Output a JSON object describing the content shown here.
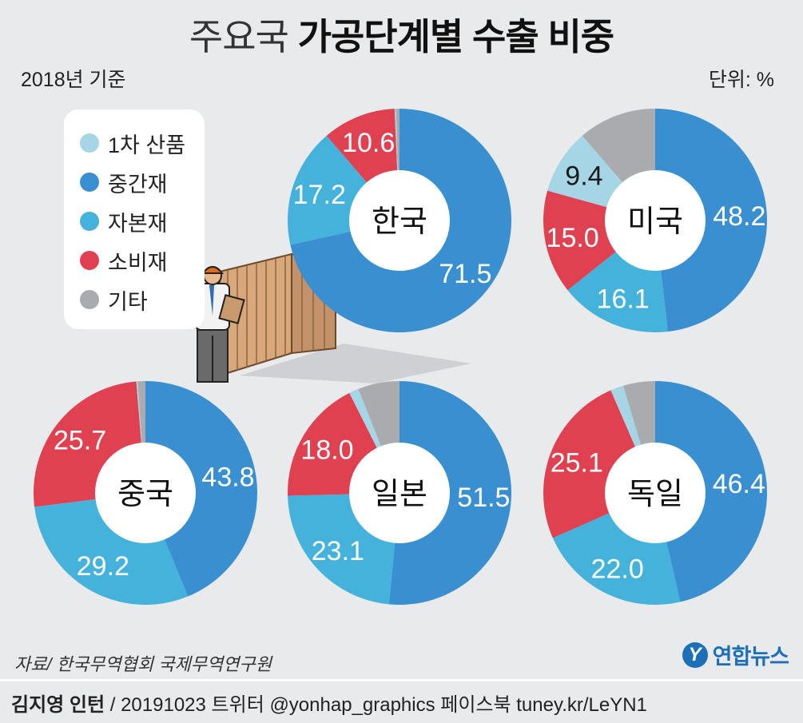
{
  "title_light": "주요국",
  "title_bold": "가공단계별 수출 비중",
  "basis": "2018년 기준",
  "unit": "단위: %",
  "legend": [
    {
      "label": "1차 산품",
      "color": "#a6d5e6"
    },
    {
      "label": "중간재",
      "color": "#3a8fd0"
    },
    {
      "label": "자본재",
      "color": "#45b2dc"
    },
    {
      "label": "소비재",
      "color": "#e04150"
    },
    {
      "label": "기타",
      "color": "#a9abae"
    }
  ],
  "source": "자료/ 한국무역협회 국제무역연구원",
  "credit_author": "김지영 인턴",
  "credit_rest": "/ 20191023 트위터 @yonhap_graphics 페이스북 tuney.kr/LeYN1",
  "brand": "연합뉴스",
  "brand_mark": "Y",
  "chart_data": [
    {
      "type": "pie",
      "name": "한국",
      "categories": [
        "중간재",
        "자본재",
        "소비재",
        "1차 산품",
        "기타"
      ],
      "values": [
        71.5,
        17.2,
        10.6,
        0.2,
        0.5
      ],
      "data_labels": [
        "71.5",
        "17.2",
        "10.6",
        "",
        ""
      ]
    },
    {
      "type": "pie",
      "name": "미국",
      "categories": [
        "중간재",
        "자본재",
        "소비재",
        "1차 산품",
        "기타"
      ],
      "values": [
        48.2,
        16.1,
        15.0,
        9.4,
        11.3
      ],
      "data_labels": [
        "48.2",
        "16.1",
        "15.0",
        "9.4",
        ""
      ]
    },
    {
      "type": "pie",
      "name": "중국",
      "categories": [
        "중간재",
        "자본재",
        "소비재",
        "1차 산품",
        "기타"
      ],
      "values": [
        43.8,
        29.2,
        25.7,
        0.2,
        1.1
      ],
      "data_labels": [
        "43.8",
        "29.2",
        "25.7",
        "",
        ""
      ]
    },
    {
      "type": "pie",
      "name": "일본",
      "categories": [
        "중간재",
        "자본재",
        "소비재",
        "1차 산품",
        "기타"
      ],
      "values": [
        51.5,
        23.1,
        18.0,
        1.4,
        6.0
      ],
      "data_labels": [
        "51.5",
        "23.1",
        "18.0",
        "",
        ""
      ]
    },
    {
      "type": "pie",
      "name": "독일",
      "categories": [
        "중간재",
        "자본재",
        "소비재",
        "1차 산품",
        "기타"
      ],
      "values": [
        46.4,
        22.0,
        25.1,
        1.9,
        4.6
      ],
      "data_labels": [
        "46.4",
        "22.0",
        "25.1",
        "",
        ""
      ]
    }
  ]
}
